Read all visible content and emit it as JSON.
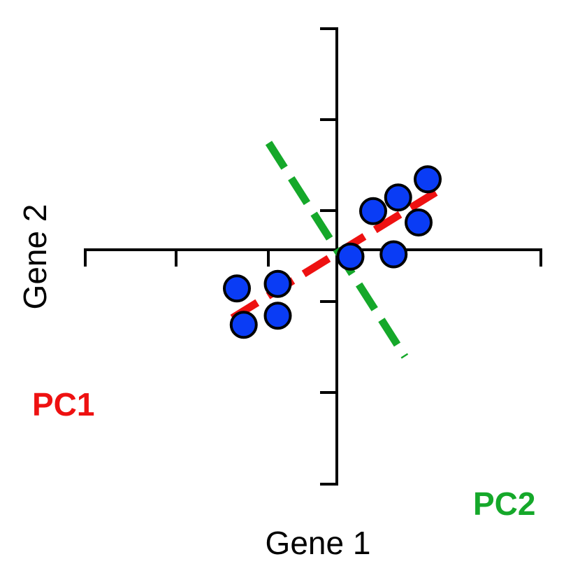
{
  "colors": {
    "pc1": "#ee1111",
    "pc2": "#15a82a",
    "point_fill": "#0a3cf5",
    "axis": "#000000"
  },
  "chart_data": {
    "type": "scatter",
    "xlabel": "Gene 1",
    "ylabel": "Gene 2",
    "xlim": [
      -5,
      4.5
    ],
    "ylim": [
      -3.6,
      3.4
    ],
    "grid": false,
    "x_ticks": [
      -4,
      -3,
      -2,
      -1,
      0,
      1,
      2,
      3,
      4
    ],
    "y_ticks": [
      -3,
      -2,
      -1,
      0,
      1,
      2,
      3
    ],
    "points": [
      {
        "x": -2.2,
        "y": -0.85
      },
      {
        "x": -1.3,
        "y": -0.75
      },
      {
        "x": -1.3,
        "y": -1.45
      },
      {
        "x": -2.05,
        "y": -1.65
      },
      {
        "x": 0.3,
        "y": -0.15
      },
      {
        "x": 0.8,
        "y": 0.85
      },
      {
        "x": 1.35,
        "y": 1.15
      },
      {
        "x": 1.25,
        "y": -0.1
      },
      {
        "x": 1.8,
        "y": 0.6
      },
      {
        "x": 2.0,
        "y": 1.55
      }
    ],
    "lines": [
      {
        "label": "PC1",
        "start": [
          -2.3,
          -1.5
        ],
        "end": [
          2.4,
          1.4
        ]
      },
      {
        "label": "PC2",
        "start": [
          -1.5,
          2.35
        ],
        "end": [
          1.5,
          -2.35
        ]
      }
    ]
  }
}
